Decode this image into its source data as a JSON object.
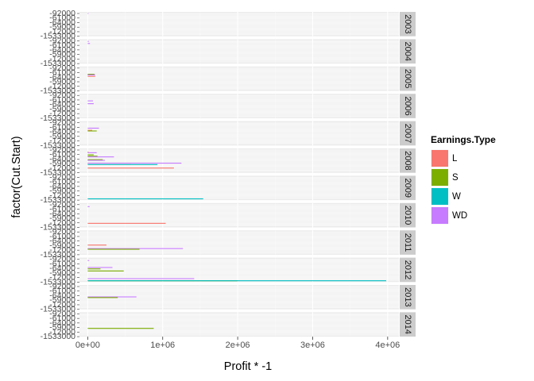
{
  "chart_data": {
    "type": "bar",
    "orientation": "horizontal",
    "facet_by": "year",
    "facet_strip_position": "right",
    "xlabel": "Profit * -1",
    "ylabel": "factor(Cut.Start)",
    "x_ticks": [
      {
        "value": 0,
        "label": "0e+00"
      },
      {
        "value": 1000000,
        "label": "1e+06"
      },
      {
        "value": 2000000,
        "label": "2e+06"
      },
      {
        "value": 3000000,
        "label": "3e+06"
      },
      {
        "value": 4000000,
        "label": "4e+06"
      }
    ],
    "xlim": [
      -110000,
      4150000
    ],
    "grid": true,
    "legend": {
      "title": "Earnings.Type",
      "position": "right",
      "entries": [
        {
          "name": "L",
          "color": "#F8766D"
        },
        {
          "name": "S",
          "color": "#7CAE00"
        },
        {
          "name": "W",
          "color": "#00BFC4"
        },
        {
          "name": "WD",
          "color": "#C77CFF"
        }
      ]
    },
    "category_count": 32,
    "category_labels_visible": [
      "-92000",
      "-61000",
      "-64000",
      "-59000",
      "-12000",
      "-1533000"
    ],
    "facets": [
      {
        "year": "2003",
        "bars": [
          {
            "cat": 0,
            "series": "WD",
            "value": 10000
          }
        ]
      },
      {
        "year": "2004",
        "bars": [
          {
            "cat": 1,
            "series": "WD",
            "value": 15000
          },
          {
            "cat": 4,
            "series": "WD",
            "value": 30000
          }
        ]
      },
      {
        "year": "2005",
        "bars": [
          {
            "cat": 9,
            "series": "S",
            "value": 90000
          },
          {
            "cat": 10,
            "series": "WD",
            "value": 100000
          },
          {
            "cat": 12,
            "series": "L",
            "value": 100000
          }
        ]
      },
      {
        "year": "2006",
        "bars": [
          {
            "cat": 8,
            "series": "WD",
            "value": 70000
          },
          {
            "cat": 12,
            "series": "WD",
            "value": 80000
          }
        ]
      },
      {
        "year": "2007",
        "bars": [
          {
            "cat": 8,
            "series": "WD",
            "value": 150000
          },
          {
            "cat": 11,
            "series": "L",
            "value": 60000
          },
          {
            "cat": 12,
            "series": "S",
            "value": 120000
          }
        ]
      },
      {
        "year": "2008",
        "bars": [
          {
            "cat": 3,
            "series": "L",
            "value": 10000
          },
          {
            "cat": 4,
            "series": "WD",
            "value": 120000
          },
          {
            "cat": 7,
            "series": "S",
            "value": 80000
          },
          {
            "cat": 9,
            "series": "S",
            "value": 130000
          },
          {
            "cat": 10,
            "series": "WD",
            "value": 350000
          },
          {
            "cat": 14,
            "series": "S",
            "value": 200000
          },
          {
            "cat": 15,
            "series": "WD",
            "value": 230000
          },
          {
            "cat": 19,
            "series": "L",
            "value": 580000
          },
          {
            "cat": 19,
            "series": "WD",
            "value": 1250000
          },
          {
            "cat": 21,
            "series": "W",
            "value": 930000
          },
          {
            "cat": 26,
            "series": "L",
            "value": 1150000
          }
        ]
      },
      {
        "year": "2009",
        "bars": [
          {
            "cat": 31,
            "series": "W",
            "value": 1540000
          }
        ]
      },
      {
        "year": "2010",
        "bars": [
          {
            "cat": 3,
            "series": "WD",
            "value": 25000
          },
          {
            "cat": 27,
            "series": "L",
            "value": 1040000
          }
        ]
      },
      {
        "year": "2011",
        "bars": [
          {
            "cat": 19,
            "series": "L",
            "value": 250000
          },
          {
            "cat": 24,
            "series": "WD",
            "value": 1270000
          },
          {
            "cat": 25,
            "series": "S",
            "value": 690000
          }
        ]
      },
      {
        "year": "2012",
        "bars": [
          {
            "cat": 2,
            "series": "WD",
            "value": 20000
          },
          {
            "cat": 12,
            "series": "WD",
            "value": 330000
          },
          {
            "cat": 14,
            "series": "S",
            "value": 170000
          },
          {
            "cat": 17,
            "series": "S",
            "value": 480000
          },
          {
            "cat": 28,
            "series": "WD",
            "value": 1420000
          },
          {
            "cat": 31,
            "series": "S",
            "value": 2000000
          },
          {
            "cat": 31,
            "series": "W",
            "value": 3980000
          }
        ]
      },
      {
        "year": "2013",
        "bars": [
          {
            "cat": 15,
            "series": "WD",
            "value": 650000
          },
          {
            "cat": 16,
            "series": "S",
            "value": 400000
          }
        ]
      },
      {
        "year": "2014",
        "bars": [
          {
            "cat": 21,
            "series": "S",
            "value": 880000
          }
        ]
      }
    ]
  }
}
